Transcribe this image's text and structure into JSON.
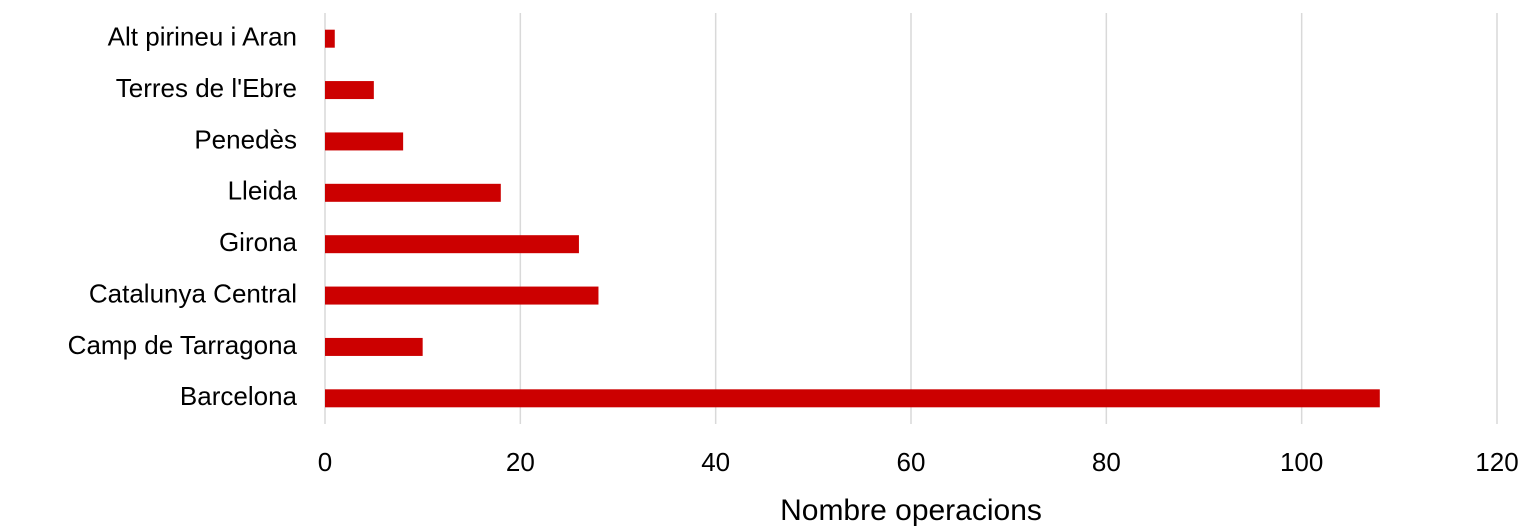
{
  "chart_data": {
    "type": "bar",
    "orientation": "horizontal",
    "x_label": "Nombre operacions",
    "categories": [
      "Alt pirineu i Aran",
      "Terres de l'Ebre",
      "Penedès",
      "Lleida",
      "Girona",
      "Catalunya Central",
      "Camp de Tarragona",
      "Barcelona"
    ],
    "values": [
      1,
      5,
      8,
      18,
      26,
      28,
      10,
      108
    ],
    "color": "#cc0000",
    "xlim": [
      0,
      120
    ],
    "xticks": [
      0,
      20,
      40,
      60,
      80,
      100,
      120
    ],
    "grid": true
  }
}
